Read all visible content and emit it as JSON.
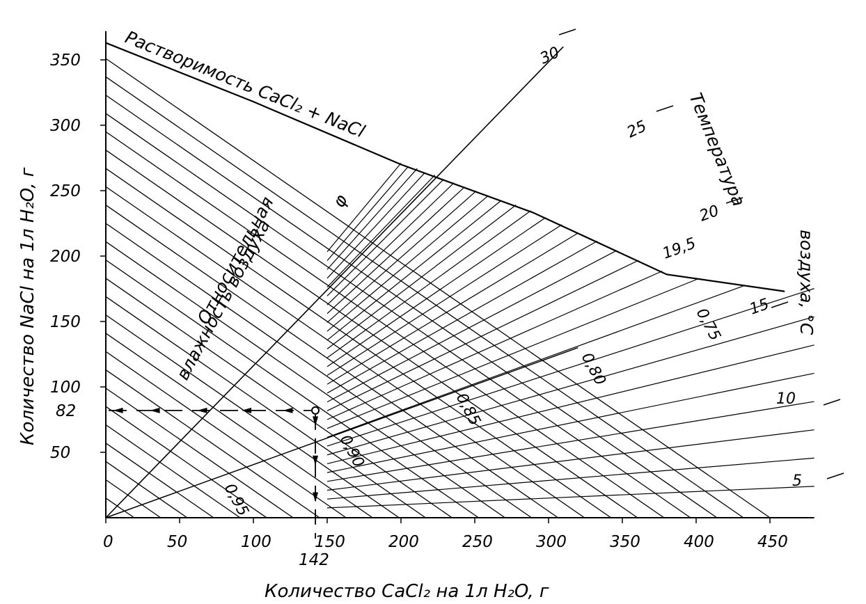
{
  "chart_data": {
    "type": "line",
    "title": "",
    "xlabel": "Количество CaCl₂ на 1л H₂O, г",
    "ylabel": "Количество NaCl на 1л H₂O, г",
    "xlim": [
      0,
      475
    ],
    "ylim": [
      0,
      370
    ],
    "x_ticks": [
      0,
      50,
      100,
      150,
      200,
      250,
      300,
      350,
      400,
      450
    ],
    "y_ticks": [
      50,
      100,
      150,
      200,
      250,
      300,
      350
    ],
    "grid": false,
    "solubility_curve": {
      "label": "Растворимость CaCl₂ + NaCl",
      "points": [
        [
          0,
          363
        ],
        [
          100,
          318
        ],
        [
          200,
          270
        ],
        [
          290,
          233
        ],
        [
          380,
          186
        ],
        [
          460,
          173
        ]
      ]
    },
    "humidity_label": [
      "Относительная",
      "влажность воздуха",
      "φ"
    ],
    "temperature_label": [
      "Температура",
      "воздуха, °C"
    ],
    "humidity_lines": [
      {
        "label": "0,95",
        "x": [
          0,
          210
        ],
        "y": [
          0,
          0
        ]
      },
      {
        "label": "0,90",
        "x": [
          80,
          360
        ],
        "y": [
          0,
          0
        ]
      },
      {
        "label": "0,85",
        "x": [
          150,
          410
        ],
        "y": [
          0,
          0
        ]
      },
      {
        "label": "0,80",
        "x": [
          240,
          470
        ],
        "y": [
          0,
          0
        ]
      },
      {
        "label": "0,75",
        "x": [
          300,
          480
        ],
        "y": [
          0,
          0
        ]
      }
    ],
    "temperature_lines": [
      {
        "label": "5",
        "x": [
          0,
          480
        ],
        "y": [
          0,
          45
        ]
      },
      {
        "label": "10",
        "x": [
          0,
          480
        ],
        "y": [
          0,
          90
        ]
      },
      {
        "label": "15",
        "x": [
          0,
          480
        ],
        "y": [
          0,
          160
        ]
      },
      {
        "label": "19,5",
        "x": [
          0,
          420
        ],
        "y": [
          0,
          220
        ]
      },
      {
        "label": "20",
        "x": [
          0,
          440
        ],
        "y": [
          0,
          235
        ]
      },
      {
        "label": "25",
        "x": [
          0,
          360
        ],
        "y": [
          0,
          300
        ]
      },
      {
        "label": "30",
        "x": [
          0,
          300
        ],
        "y": [
          0,
          355
        ]
      }
    ],
    "example_point": {
      "x": 142,
      "y": 82,
      "x_label": "142",
      "y_label": "82"
    }
  }
}
